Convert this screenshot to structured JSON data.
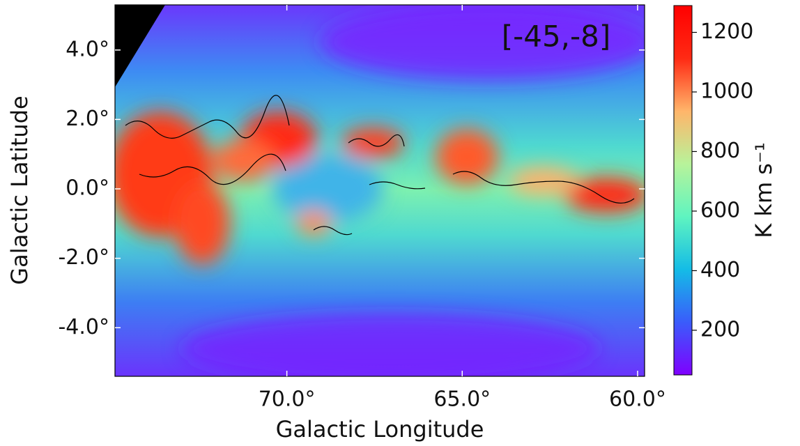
{
  "chart_data": {
    "type": "heatmap",
    "annotation": "[-45,-8]",
    "x_label": "Galactic Longitude",
    "y_label": "Galactic Latitude",
    "xlim": [
      74.9,
      59.8
    ],
    "ylim": [
      -5.4,
      5.3
    ],
    "xticks": [
      {
        "value": 70,
        "label": "70.0°"
      },
      {
        "value": 65,
        "label": "65.0°"
      },
      {
        "value": 60,
        "label": "60.0°"
      }
    ],
    "yticks": [
      {
        "value": 4,
        "label": "4.0°"
      },
      {
        "value": 2,
        "label": "2.0°"
      },
      {
        "value": 0,
        "label": "0.0°"
      },
      {
        "value": -2,
        "label": "-2.0°"
      },
      {
        "value": -4,
        "label": "-4.0°"
      }
    ],
    "colorbar": {
      "label": "K km s⁻¹",
      "clim": [
        50,
        1290
      ],
      "ticks": [
        200,
        400,
        600,
        800,
        1000,
        1200
      ],
      "colormap": [
        "#7f00ff",
        "#3a5cfb",
        "#14bce6",
        "#5ff4c0",
        "#b8f39a",
        "#ffb56a",
        "#ff2a14",
        "#ff0000"
      ]
    }
  }
}
